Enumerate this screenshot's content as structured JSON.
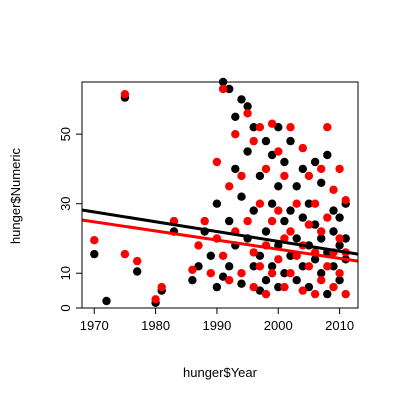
{
  "chart_data": {
    "type": "scatter",
    "title": "",
    "xlabel": "hunger$Year",
    "ylabel": "hunger$Numeric",
    "xlim": [
      1968,
      2013
    ],
    "ylim": [
      0,
      65
    ],
    "x_ticks": [
      1970,
      1980,
      1990,
      2000,
      2010
    ],
    "y_ticks": [
      0,
      10,
      30,
      50
    ],
    "grid": false,
    "legend": "none",
    "series": [
      {
        "color": "#000000",
        "points": [
          [
            1970,
            15.5
          ],
          [
            1972,
            2
          ],
          [
            1975,
            60.5
          ],
          [
            1977,
            10.5
          ],
          [
            1980,
            1.5
          ],
          [
            1981,
            5
          ],
          [
            1983,
            22
          ],
          [
            1986,
            8
          ],
          [
            1987,
            12
          ],
          [
            1988,
            22
          ],
          [
            1989,
            15
          ],
          [
            1990,
            6
          ],
          [
            1990,
            30
          ],
          [
            1991,
            65
          ],
          [
            1991,
            9
          ],
          [
            1992,
            63
          ],
          [
            1992,
            12
          ],
          [
            1992,
            25
          ],
          [
            1993,
            40
          ],
          [
            1993,
            55
          ],
          [
            1993,
            18
          ],
          [
            1994,
            60
          ],
          [
            1994,
            7
          ],
          [
            1994,
            32
          ],
          [
            1995,
            58
          ],
          [
            1995,
            20
          ],
          [
            1995,
            45
          ],
          [
            1996,
            12
          ],
          [
            1996,
            28
          ],
          [
            1996,
            52
          ],
          [
            1997,
            5
          ],
          [
            1997,
            38
          ],
          [
            1997,
            15
          ],
          [
            1998,
            48
          ],
          [
            1998,
            22
          ],
          [
            1998,
            8
          ],
          [
            1999,
            44
          ],
          [
            1999,
            30
          ],
          [
            1999,
            12
          ],
          [
            2000,
            52
          ],
          [
            2000,
            18
          ],
          [
            2000,
            6
          ],
          [
            2000,
            35
          ],
          [
            2001,
            25
          ],
          [
            2001,
            10
          ],
          [
            2001,
            42
          ],
          [
            2002,
            48
          ],
          [
            2002,
            15
          ],
          [
            2002,
            28
          ],
          [
            2003,
            35
          ],
          [
            2003,
            8
          ],
          [
            2003,
            20
          ],
          [
            2004,
            40
          ],
          [
            2004,
            12
          ],
          [
            2004,
            26
          ],
          [
            2005,
            30
          ],
          [
            2005,
            6
          ],
          [
            2005,
            18
          ],
          [
            2006,
            42
          ],
          [
            2006,
            14
          ],
          [
            2006,
            24
          ],
          [
            2007,
            36
          ],
          [
            2007,
            10
          ],
          [
            2007,
            20
          ],
          [
            2008,
            44
          ],
          [
            2008,
            16
          ],
          [
            2008,
            4
          ],
          [
            2009,
            28
          ],
          [
            2009,
            12
          ],
          [
            2009,
            22
          ],
          [
            2010,
            18
          ],
          [
            2010,
            8
          ],
          [
            2010,
            26
          ],
          [
            2011,
            20
          ],
          [
            2011,
            14
          ],
          [
            2011,
            30
          ]
        ]
      },
      {
        "color": "#ff0000",
        "points": [
          [
            1970,
            19.5
          ],
          [
            1975,
            61.5
          ],
          [
            1975,
            15.5
          ],
          [
            1977,
            13.5
          ],
          [
            1980,
            2.5
          ],
          [
            1981,
            6
          ],
          [
            1983,
            25
          ],
          [
            1986,
            11
          ],
          [
            1987,
            18
          ],
          [
            1988,
            25
          ],
          [
            1989,
            10
          ],
          [
            1990,
            20
          ],
          [
            1990,
            42
          ],
          [
            1991,
            63
          ],
          [
            1991,
            15
          ],
          [
            1992,
            35
          ],
          [
            1992,
            8
          ],
          [
            1993,
            50
          ],
          [
            1993,
            22
          ],
          [
            1994,
            38
          ],
          [
            1994,
            10
          ],
          [
            1995,
            56
          ],
          [
            1995,
            25
          ],
          [
            1996,
            48
          ],
          [
            1996,
            16
          ],
          [
            1996,
            6
          ],
          [
            1997,
            52
          ],
          [
            1997,
            30
          ],
          [
            1997,
            12
          ],
          [
            1998,
            40
          ],
          [
            1998,
            18
          ],
          [
            1998,
            4
          ],
          [
            1999,
            53
          ],
          [
            1999,
            25
          ],
          [
            1999,
            10
          ],
          [
            2000,
            45
          ],
          [
            2000,
            28
          ],
          [
            2000,
            14
          ],
          [
            2001,
            38
          ],
          [
            2001,
            20
          ],
          [
            2001,
            6
          ],
          [
            2002,
            52
          ],
          [
            2002,
            22
          ],
          [
            2002,
            10
          ],
          [
            2003,
            30
          ],
          [
            2003,
            15
          ],
          [
            2004,
            46
          ],
          [
            2004,
            18
          ],
          [
            2004,
            5
          ],
          [
            2005,
            38
          ],
          [
            2005,
            24
          ],
          [
            2005,
            12
          ],
          [
            2006,
            30
          ],
          [
            2006,
            16
          ],
          [
            2006,
            4
          ],
          [
            2007,
            40
          ],
          [
            2007,
            22
          ],
          [
            2007,
            8
          ],
          [
            2008,
            52
          ],
          [
            2008,
            26
          ],
          [
            2008,
            12
          ],
          [
            2009,
            34
          ],
          [
            2009,
            16
          ],
          [
            2009,
            6
          ],
          [
            2010,
            40
          ],
          [
            2010,
            20
          ],
          [
            2010,
            10
          ],
          [
            2011,
            31
          ],
          [
            2011,
            16
          ],
          [
            2011,
            4
          ]
        ]
      }
    ],
    "regression_lines": [
      {
        "color": "#000000",
        "x": [
          1968,
          2013
        ],
        "y": [
          28.2,
          15.5
        ]
      },
      {
        "color": "#ff0000",
        "x": [
          1968,
          2013
        ],
        "y": [
          25.3,
          13.5
        ]
      }
    ]
  }
}
